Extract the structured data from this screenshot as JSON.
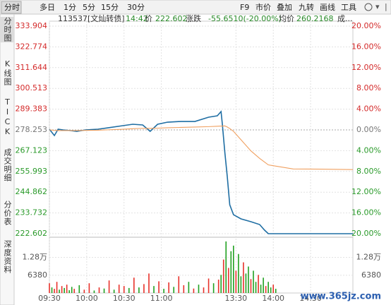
{
  "toolbar": {
    "left": [
      "分时",
      "多日",
      "1分",
      "5分",
      "15分",
      "30分"
    ],
    "right": [
      "F9",
      "市价",
      "叠加",
      "九转",
      "画线",
      "工具"
    ]
  },
  "sidebar": [
    "分时图",
    "K线图",
    "TICK",
    "成交明细",
    "分价表",
    "深度资料"
  ],
  "info": [
    "113537[文灿转债]",
    "14:42",
    "价",
    "222.602",
    "涨跌",
    "-55.6510(-20.00%)",
    "均价",
    "260.2168",
    "成..."
  ],
  "watermark": "www.365jz.com",
  "chart_data": [
    {
      "type": "line",
      "x": [
        0,
        4,
        7,
        11,
        17,
        22,
        29,
        39,
        47,
        59,
        67,
        75,
        81,
        87,
        95,
        106,
        117,
        128,
        135,
        138,
        139,
        141,
        143,
        145,
        148,
        154,
        162,
        169,
        173,
        176,
        196,
        218,
        244
      ],
      "xlim": [
        0,
        244
      ],
      "xticks": [
        {
          "value": 0,
          "label": "09:30"
        },
        {
          "value": 30,
          "label": "10:00"
        },
        {
          "value": 60,
          "label": "10:30"
        },
        {
          "value": 90,
          "label": "11:00"
        },
        {
          "value": 150,
          "label": "13:30"
        },
        {
          "value": 180,
          "label": "14:00"
        },
        {
          "value": 210,
          "label": "14:30"
        }
      ],
      "ylim": [
        222.602,
        333.904
      ],
      "yticks": [
        333.904,
        322.774,
        311.644,
        300.513,
        289.383,
        278.253,
        267.123,
        255.993,
        244.862,
        233.732,
        222.602
      ],
      "y2lim": [
        -20,
        20
      ],
      "y2ticks": [
        {
          "value": 20,
          "label": "20.00%"
        },
        {
          "value": 16,
          "label": "16.00%"
        },
        {
          "value": 12,
          "label": "12.00%"
        },
        {
          "value": 8,
          "label": "8.00%"
        },
        {
          "value": 4,
          "label": "4.00%"
        },
        {
          "value": 0,
          "label": "0.00%"
        },
        {
          "value": -4,
          "label": "4.00%"
        },
        {
          "value": -8,
          "label": "8.00%"
        },
        {
          "value": -12,
          "label": "12.00%"
        },
        {
          "value": -16,
          "label": "16.00%"
        },
        {
          "value": -20,
          "label": "20.00%"
        }
      ],
      "grid": true,
      "series": [
        {
          "color": "#1f6ea3",
          "values": [
            278.63,
            275.22,
            278.63,
            278.25,
            277.87,
            277.49,
            278.25,
            278.63,
            279.38,
            280.52,
            281.28,
            280.9,
            277.49,
            281.28,
            282.41,
            282.79,
            282.79,
            285.06,
            285.82,
            288.1,
            281.66,
            266.52,
            253.26,
            238.12,
            232.82,
            230.55,
            229.03,
            227.52,
            224.49,
            222.602,
            222.602,
            222.602,
            222.602
          ]
        },
        {
          "color": "#f0a060",
          "values": [
            278.3,
            278.0,
            277.9,
            277.9,
            277.9,
            277.9,
            278.0,
            278.1,
            278.3,
            278.6,
            278.9,
            279.1,
            279.1,
            279.2,
            279.4,
            279.6,
            279.8,
            280.0,
            280.2,
            280.3,
            280.3,
            280.4,
            279.8,
            279.0,
            277.5,
            273.0,
            267.0,
            263.0,
            261.0,
            259.5,
            257.3,
            257.2,
            257.0
          ]
        }
      ]
    },
    {
      "type": "bar",
      "x": [
        0,
        2,
        4,
        6,
        8,
        10,
        12,
        14,
        16,
        18,
        20,
        24,
        28,
        32,
        36,
        40,
        44,
        48,
        52,
        56,
        60,
        64,
        68,
        72,
        76,
        80,
        84,
        88,
        92,
        96,
        100,
        104,
        108,
        112,
        116,
        120,
        124,
        128,
        132,
        136,
        138,
        140,
        142,
        144,
        146,
        148,
        150,
        152,
        154,
        156,
        158,
        160,
        162,
        164,
        166,
        168,
        170,
        172,
        174,
        176,
        178,
        180,
        182
      ],
      "values": [
        3500,
        2000,
        1500,
        4000,
        1200,
        2500,
        1800,
        3000,
        1000,
        2200,
        1500,
        2800,
        1200,
        3500,
        900,
        2000,
        1600,
        4500,
        1200,
        3000,
        2500,
        1800,
        5500,
        2000,
        3200,
        7000,
        2500,
        4200,
        1500,
        3800,
        2200,
        6000,
        2800,
        4000,
        1600,
        3000,
        2000,
        5200,
        3500,
        4800,
        6500,
        12000,
        18500,
        9000,
        15000,
        17000,
        8000,
        14000,
        6000,
        11000,
        7000,
        9500,
        5000,
        8000,
        4000,
        6500,
        3000,
        5500,
        2500,
        4000,
        2000,
        3000,
        1500
      ],
      "colors": [
        "#e8312a",
        "#21a121",
        "#e8312a",
        "#e8312a",
        "#21a121",
        "#e8312a",
        "#21a121",
        "#e8312a",
        "#21a121",
        "#21a121",
        "#e8312a",
        "#21a121",
        "#e8312a",
        "#e8312a",
        "#21a121",
        "#e8312a",
        "#21a121",
        "#e8312a",
        "#21a121",
        "#e8312a",
        "#e8312a",
        "#21a121",
        "#e8312a",
        "#21a121",
        "#e8312a",
        "#e8312a",
        "#21a121",
        "#e8312a",
        "#21a121",
        "#e8312a",
        "#21a121",
        "#e8312a",
        "#e8312a",
        "#21a121",
        "#e8312a",
        "#21a121",
        "#e8312a",
        "#e8312a",
        "#21a121",
        "#e8312a",
        "#21a121",
        "#e8312a",
        "#21a121",
        "#e8312a",
        "#21a121",
        "#21a121",
        "#e8312a",
        "#21a121",
        "#21a121",
        "#e8312a",
        "#21a121",
        "#21a121",
        "#e8312a",
        "#21a121",
        "#21a121",
        "#e8312a",
        "#21a121",
        "#21a121",
        "#e8312a",
        "#21a121",
        "#21a121",
        "#e8312a",
        "#21a121"
      ],
      "xlim": [
        0,
        244
      ],
      "ylim": [
        0,
        19000
      ],
      "yticks": [
        {
          "value": 12800,
          "label": "1.28万"
        },
        6380
      ]
    }
  ]
}
